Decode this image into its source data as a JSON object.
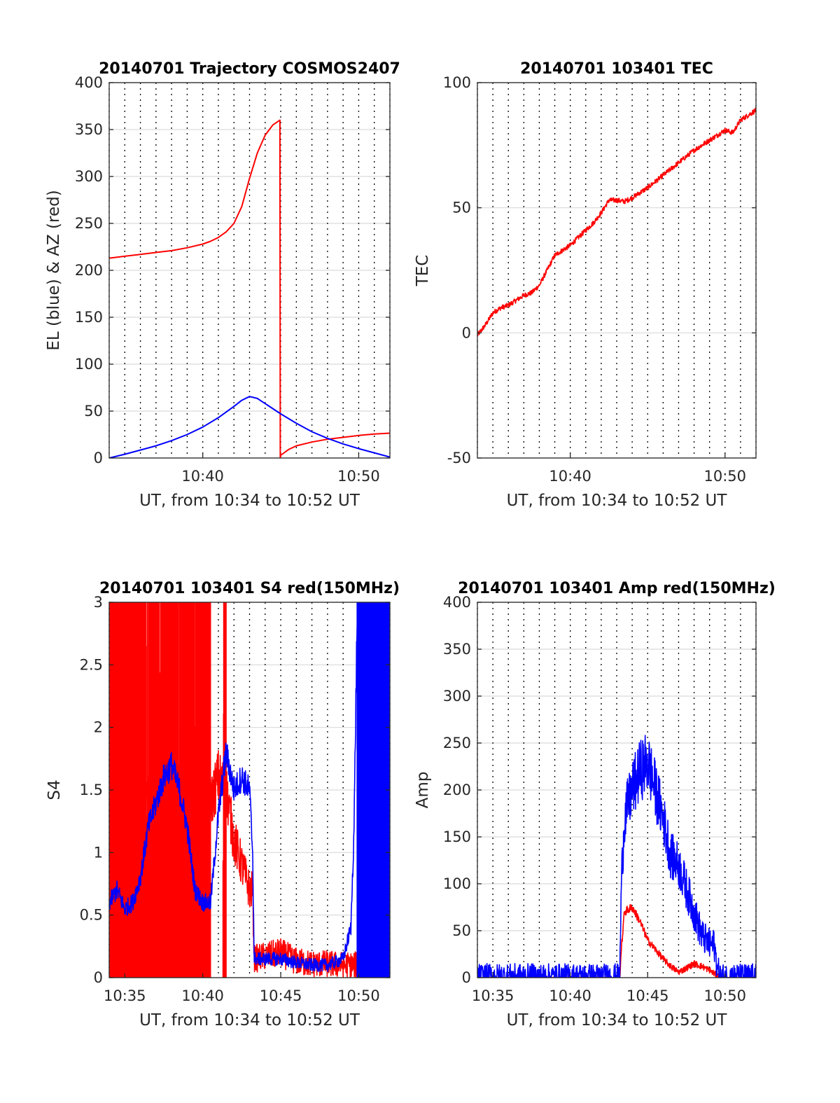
{
  "figure": {
    "background": "#ffffff"
  },
  "colors": {
    "red": "#ff0000",
    "blue": "#0000ff",
    "grid": "#d9d9d9",
    "axis": "#262626"
  },
  "chart_data": [
    {
      "id": "trajectory",
      "type": "line",
      "title": "20140701 Trajectory COSMOS2407",
      "xlabel": "UT, from 10:34 to 10:52 UT",
      "ylabel": "EL (blue) & AZ (red)",
      "xlim": [
        34,
        52
      ],
      "ylim": [
        0,
        400
      ],
      "yticks": [
        0,
        50,
        100,
        150,
        200,
        250,
        300,
        350,
        400
      ],
      "yticklabels": [
        "0",
        "50",
        "100",
        "150",
        "200",
        "250",
        "300",
        "350",
        "400"
      ],
      "xticks": [
        40,
        50
      ],
      "xticklabels": [
        "10:40",
        "10:50"
      ],
      "dotted_minutes": true,
      "grid": true,
      "series": [
        {
          "color": "#ff0000",
          "style": "smooth",
          "x": [
            34,
            35,
            36,
            37,
            38,
            39,
            40,
            40.5,
            41,
            41.5,
            42,
            42.5,
            43,
            43.5,
            44,
            44.5,
            44.95,
            44.97,
            45,
            45.5,
            46,
            47,
            48,
            49,
            50,
            51,
            52
          ],
          "y": [
            213,
            215,
            217,
            219,
            221,
            224,
            228,
            231,
            235,
            241,
            250,
            268,
            298,
            325,
            344,
            355,
            360,
            0,
            3,
            9,
            13,
            17,
            20,
            22,
            24,
            25.5,
            26.5
          ]
        },
        {
          "color": "#0000ff",
          "style": "smooth",
          "x": [
            34,
            35,
            36,
            37,
            38,
            39,
            40,
            41,
            42,
            42.5,
            43,
            43.5,
            44,
            45,
            46,
            47,
            48,
            49,
            50,
            51,
            52
          ],
          "y": [
            0,
            4,
            8.5,
            13,
            18.5,
            25,
            33,
            43,
            55,
            61.5,
            65.5,
            63.5,
            58,
            47,
            37,
            28,
            21,
            15,
            10,
            5.5,
            1
          ]
        }
      ]
    },
    {
      "id": "tec",
      "type": "line",
      "title": "20140701 103401 TEC",
      "xlabel": "UT, from 10:34 to 10:52 UT",
      "ylabel": "TEC",
      "xlim": [
        34,
        52
      ],
      "ylim": [
        -50,
        100
      ],
      "yticks": [
        -50,
        0,
        50,
        100
      ],
      "yticklabels": [
        "-50",
        "0",
        "50",
        "100"
      ],
      "xticks": [
        40,
        50
      ],
      "xticklabels": [
        "10:40",
        "10:50"
      ],
      "dotted_minutes": true,
      "grid": true,
      "series": [
        {
          "color": "#ff0000",
          "style": "noisy",
          "noise": 1.0,
          "x": [
            34,
            34.5,
            35,
            35.5,
            36,
            36.5,
            37,
            37.5,
            38,
            38.5,
            39,
            39.5,
            40,
            40.5,
            41,
            41.5,
            42,
            42.5,
            43,
            43.5,
            44,
            45,
            46,
            47,
            48,
            49,
            50,
            50.5,
            51,
            51.5,
            52
          ],
          "y": [
            -1,
            3,
            8,
            10,
            11,
            13,
            15,
            16,
            19,
            25,
            31,
            33,
            35,
            38,
            41,
            44,
            48,
            53,
            53,
            52.5,
            54,
            58,
            63,
            68,
            73,
            77,
            81,
            80,
            85,
            87,
            89
          ]
        }
      ]
    },
    {
      "id": "s4",
      "type": "line",
      "title": "20140701 103401 S4 red(150MHz)",
      "xlabel": "UT, from 10:34 to 10:52 UT",
      "ylabel": "S4",
      "xlim": [
        34,
        52
      ],
      "ylim": [
        0,
        3
      ],
      "yticks": [
        0,
        0.5,
        1,
        1.5,
        2,
        2.5,
        3
      ],
      "yticklabels": [
        "0",
        "0.5",
        "1",
        "1.5",
        "2",
        "2.5",
        "3"
      ],
      "xticks": [
        35,
        40,
        45,
        50
      ],
      "xticklabels": [
        "10:35",
        "10:40",
        "10:45",
        "10:50"
      ],
      "dotted_minutes": true,
      "grid": true,
      "series": [
        {
          "color": "#ff0000",
          "style": "noisy",
          "noise": 0.25,
          "x": [
            34,
            40.2,
            40.5,
            41,
            41.5,
            42,
            42.5,
            43,
            43.2,
            43.3,
            44,
            45,
            46,
            47,
            48,
            49,
            49.5,
            49.7,
            49.8,
            50,
            51,
            52
          ],
          "y": [
            1.5,
            1.5,
            1.4,
            1.6,
            1.5,
            1.1,
            0.9,
            0.7,
            0.7,
            0.15,
            0.17,
            0.2,
            0.13,
            0.11,
            0.11,
            0.1,
            0.1,
            0.1,
            0.1,
            0.1,
            0.1,
            0.1
          ]
        },
        {
          "color": "#0000ff",
          "style": "noisy",
          "noise": 0.12,
          "x": [
            34,
            34.5,
            35,
            35.5,
            36,
            36.5,
            37,
            37.5,
            38,
            38.5,
            39,
            39.5,
            40,
            40.5,
            41,
            41.5,
            42,
            42.5,
            43,
            43.2,
            43.3,
            44,
            45,
            46,
            47,
            48,
            49,
            49.5,
            49.7,
            49.9,
            50,
            52
          ],
          "y": [
            0.6,
            0.7,
            0.55,
            0.6,
            0.8,
            1.2,
            1.4,
            1.6,
            1.7,
            1.5,
            1.2,
            0.7,
            0.6,
            0.6,
            1.3,
            1.8,
            1.5,
            1.6,
            1.5,
            1.0,
            0.15,
            0.15,
            0.15,
            0.12,
            0.1,
            0.1,
            0.15,
            0.4,
            1.2,
            2.9,
            3.0,
            3.0
          ]
        }
      ],
      "red_bursts": [
        [
          34,
          40.5
        ],
        [
          41.3,
          41.5
        ],
        [
          50,
          50.1
        ],
        [
          50.95,
          51.05
        ]
      ],
      "blue_bursts": [
        [
          49.9,
          52
        ]
      ]
    },
    {
      "id": "amp",
      "type": "line",
      "title": "20140701 103401 Amp red(150MHz)",
      "xlabel": "UT, from 10:34 to 10:52 UT",
      "ylabel": "Amp",
      "xlim": [
        34,
        52
      ],
      "ylim": [
        0,
        400
      ],
      "yticks": [
        0,
        50,
        100,
        150,
        200,
        250,
        300,
        350,
        400
      ],
      "yticklabels": [
        "0",
        "50",
        "100",
        "150",
        "200",
        "250",
        "300",
        "350",
        "400"
      ],
      "xticks": [
        35,
        40,
        45,
        50
      ],
      "xticklabels": [
        "10:35",
        "10:40",
        "10:45",
        "10:50"
      ],
      "dotted_minutes": true,
      "grid": true,
      "series": [
        {
          "color": "#ff0000",
          "style": "noisy",
          "noise": 8,
          "x": [
            34,
            43.2,
            43.3,
            43.5,
            44,
            44.5,
            45,
            45.5,
            46,
            46.5,
            47,
            47.5,
            48,
            48.5,
            49,
            49.5,
            49.7,
            52
          ],
          "y": [
            0,
            0,
            30,
            70,
            75,
            60,
            40,
            30,
            20,
            12,
            6,
            10,
            15,
            12,
            8,
            2,
            0,
            0
          ]
        },
        {
          "color": "#0000ff",
          "style": "noisy",
          "noise": 35,
          "x": [
            34,
            40,
            43.2,
            43.3,
            43.5,
            44,
            44.5,
            45,
            45.5,
            46,
            46.5,
            47,
            47.5,
            48,
            48.5,
            49,
            49.3,
            49.5,
            49.7,
            52
          ],
          "y": [
            1,
            1,
            1,
            100,
            170,
            200,
            220,
            230,
            200,
            170,
            130,
            120,
            95,
            70,
            45,
            35,
            35,
            10,
            1,
            1
          ]
        }
      ]
    }
  ]
}
